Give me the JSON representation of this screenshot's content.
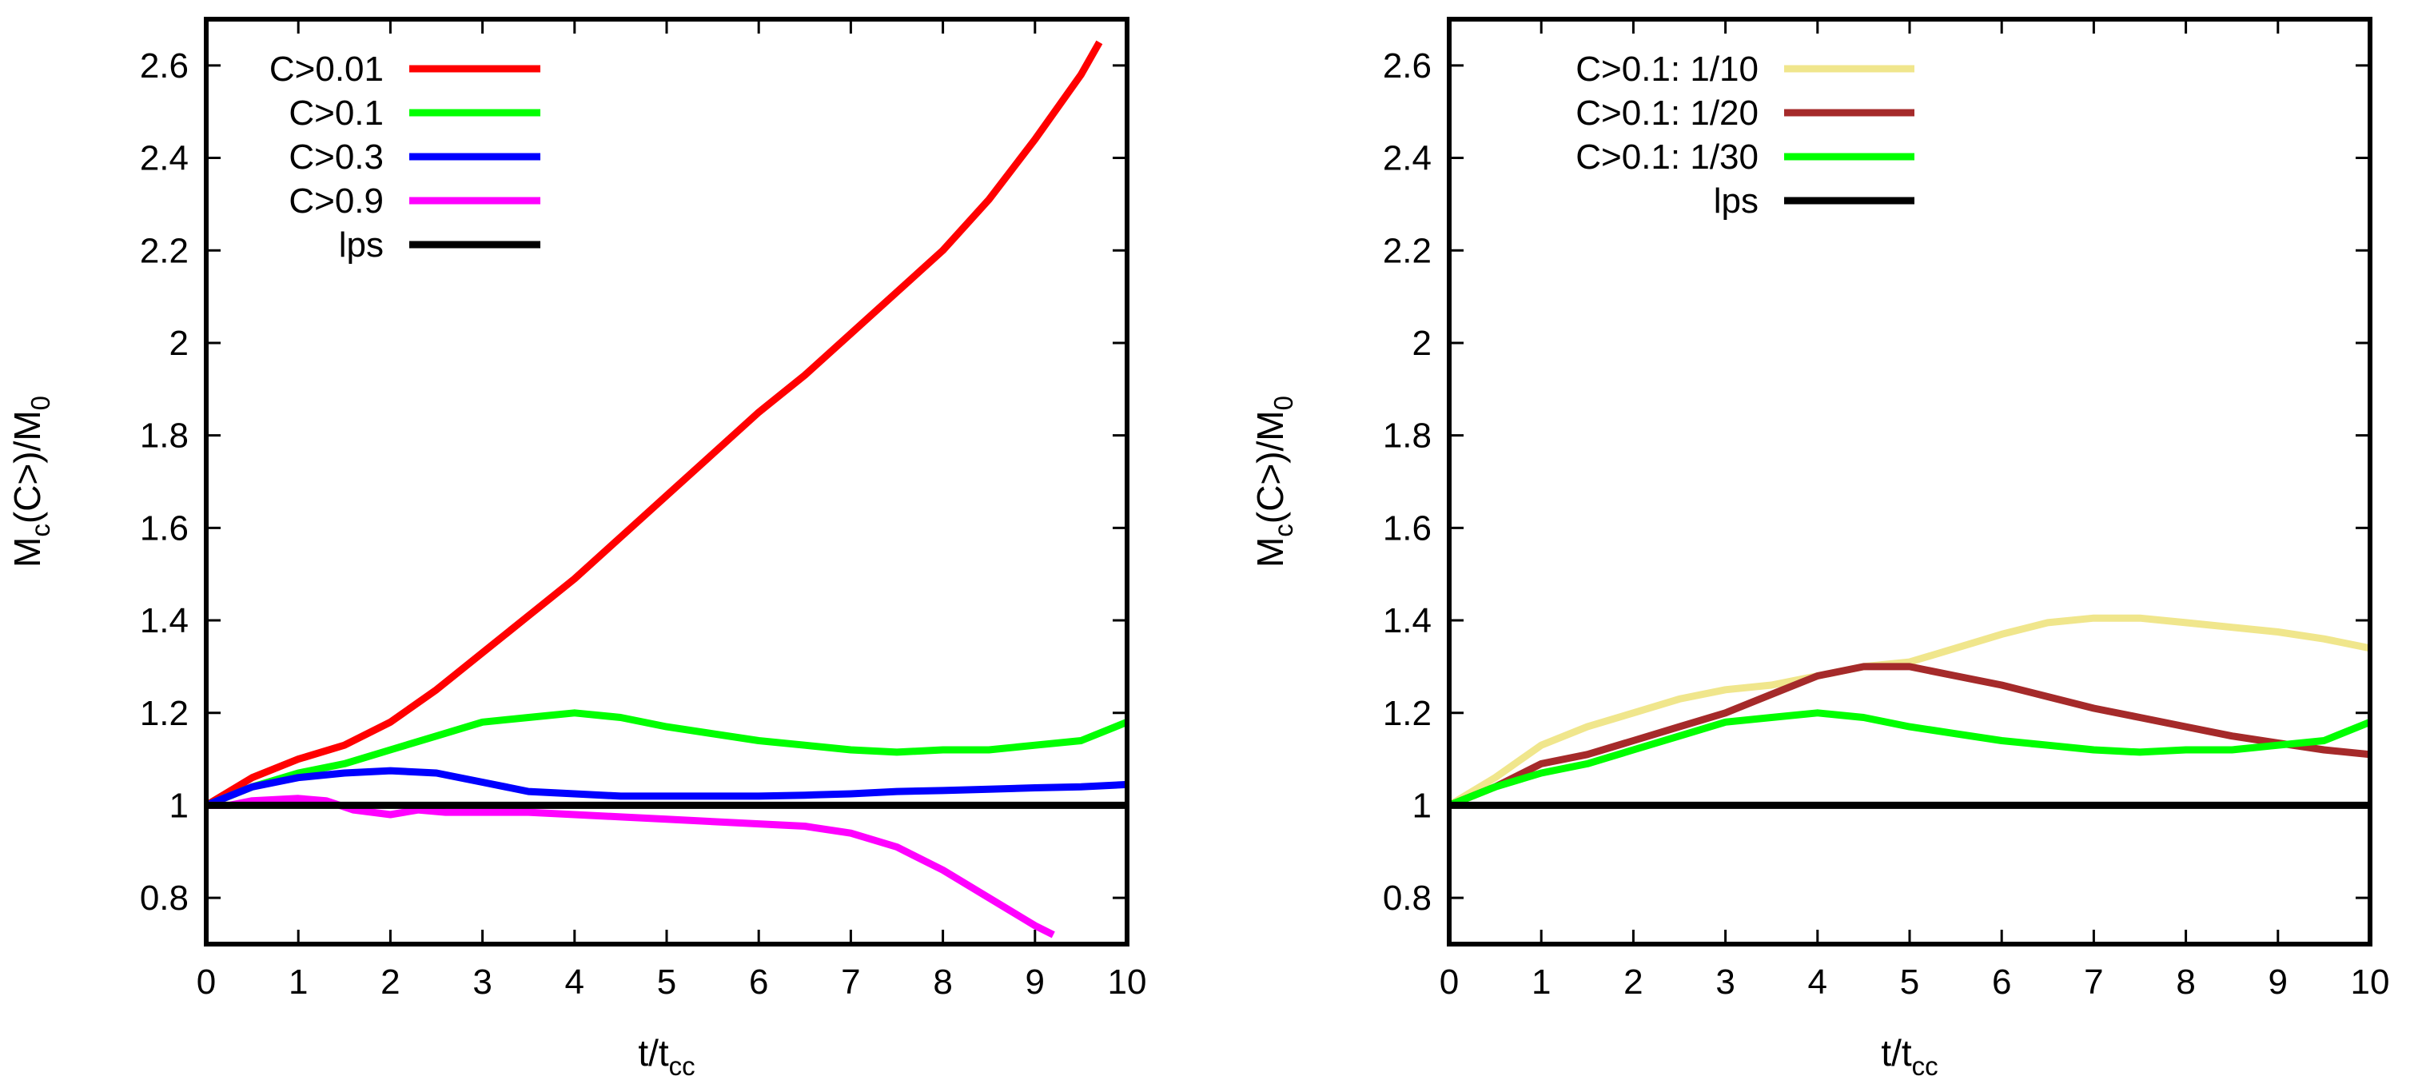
{
  "chart_data": [
    {
      "type": "line",
      "title": "",
      "xlabel": {
        "main": "t/t",
        "sub": "cc"
      },
      "ylabel": {
        "m": "M",
        "m_sub": "c",
        "mid": "(C>)/M",
        "zero_sub": "0"
      },
      "xlim": [
        0,
        10
      ],
      "ylim": [
        0.7,
        2.7
      ],
      "xticks": [
        0,
        1,
        2,
        3,
        4,
        5,
        6,
        7,
        8,
        9,
        10
      ],
      "xtick_labels": [
        "0",
        "1",
        "2",
        "3",
        "4",
        "5",
        "6",
        "7",
        "8",
        "9",
        "10"
      ],
      "yticks": [
        0.8,
        1.0,
        1.2,
        1.4,
        1.6,
        1.8,
        2.0,
        2.2,
        2.4,
        2.6
      ],
      "ytick_labels": [
        "0.8",
        "1",
        "1.2",
        "1.4",
        "1.6",
        "1.8",
        "2",
        "2.2",
        "2.4",
        "2.6"
      ],
      "legend_position": "top-left",
      "series": [
        {
          "name": "C>0.01",
          "color": "#ff0000",
          "x": [
            0,
            0.5,
            1,
            1.5,
            2,
            2.5,
            3,
            3.5,
            4,
            4.5,
            5,
            5.5,
            6,
            6.5,
            7,
            7.5,
            8,
            8.5,
            9,
            9.5,
            9.7
          ],
          "y": [
            1.0,
            1.06,
            1.1,
            1.13,
            1.18,
            1.25,
            1.33,
            1.41,
            1.49,
            1.58,
            1.67,
            1.76,
            1.85,
            1.93,
            2.02,
            2.11,
            2.2,
            2.31,
            2.44,
            2.58,
            2.65
          ]
        },
        {
          "name": "C>0.1",
          "color": "#00ff00",
          "x": [
            0,
            0.5,
            1,
            1.5,
            2,
            2.5,
            3,
            3.5,
            4,
            4.5,
            5,
            5.5,
            6,
            6.5,
            7,
            7.5,
            8,
            8.5,
            9,
            9.5,
            10
          ],
          "y": [
            1.0,
            1.04,
            1.07,
            1.09,
            1.12,
            1.15,
            1.18,
            1.19,
            1.2,
            1.19,
            1.17,
            1.155,
            1.14,
            1.13,
            1.12,
            1.115,
            1.12,
            1.12,
            1.13,
            1.14,
            1.18
          ]
        },
        {
          "name": "C>0.3",
          "color": "#0000ff",
          "x": [
            0,
            0.5,
            1,
            1.5,
            2,
            2.5,
            3,
            3.5,
            4,
            4.5,
            5,
            5.5,
            6,
            6.5,
            7,
            7.5,
            8,
            8.5,
            9,
            9.5,
            10
          ],
          "y": [
            1.0,
            1.04,
            1.06,
            1.07,
            1.075,
            1.07,
            1.05,
            1.03,
            1.025,
            1.02,
            1.02,
            1.02,
            1.02,
            1.022,
            1.025,
            1.03,
            1.032,
            1.035,
            1.038,
            1.04,
            1.045
          ]
        },
        {
          "name": "C>0.9",
          "color": "#ff00ff",
          "x": [
            0,
            0.25,
            0.5,
            1,
            1.3,
            1.6,
            2,
            2.3,
            2.6,
            3,
            3.5,
            4,
            4.5,
            5,
            5.5,
            6,
            6.5,
            7,
            7.5,
            8,
            8.5,
            9,
            9.2
          ],
          "y": [
            1.0,
            1.0,
            1.01,
            1.015,
            1.01,
            0.99,
            0.98,
            0.99,
            0.985,
            0.985,
            0.985,
            0.98,
            0.975,
            0.97,
            0.965,
            0.96,
            0.955,
            0.94,
            0.91,
            0.86,
            0.8,
            0.74,
            0.72
          ]
        },
        {
          "name": "lps",
          "color": "#000000",
          "x": [
            0,
            10
          ],
          "y": [
            1.0,
            1.0
          ]
        }
      ]
    },
    {
      "type": "line",
      "title": "",
      "xlabel": {
        "main": "t/t",
        "sub": "cc"
      },
      "ylabel": {
        "m": "M",
        "m_sub": "c",
        "mid": "(C>)/M",
        "zero_sub": "0"
      },
      "xlim": [
        0,
        10
      ],
      "ylim": [
        0.7,
        2.7
      ],
      "xticks": [
        0,
        1,
        2,
        3,
        4,
        5,
        6,
        7,
        8,
        9,
        10
      ],
      "xtick_labels": [
        "0",
        "1",
        "2",
        "3",
        "4",
        "5",
        "6",
        "7",
        "8",
        "9",
        "10"
      ],
      "yticks": [
        0.8,
        1.0,
        1.2,
        1.4,
        1.6,
        1.8,
        2.0,
        2.2,
        2.4,
        2.6
      ],
      "ytick_labels": [
        "0.8",
        "1",
        "1.2",
        "1.4",
        "1.6",
        "1.8",
        "2",
        "2.2",
        "2.4",
        "2.6"
      ],
      "legend_position": "top-center",
      "series": [
        {
          "name": "C>0.1: 1/10",
          "color": "#f0e68c",
          "x": [
            0,
            0.5,
            1,
            1.5,
            2,
            2.5,
            3,
            3.5,
            4,
            4.5,
            5,
            5.5,
            6,
            6.5,
            7,
            7.5,
            8,
            8.5,
            9,
            9.5,
            10
          ],
          "y": [
            1.0,
            1.06,
            1.13,
            1.17,
            1.2,
            1.23,
            1.25,
            1.26,
            1.28,
            1.3,
            1.31,
            1.34,
            1.37,
            1.395,
            1.405,
            1.405,
            1.395,
            1.385,
            1.375,
            1.36,
            1.34
          ]
        },
        {
          "name": "C>0.1: 1/20",
          "color": "#a52a2a",
          "x": [
            0,
            0.5,
            1,
            1.5,
            2,
            2.5,
            3,
            3.5,
            4,
            4.5,
            5,
            5.5,
            6,
            6.5,
            7,
            7.5,
            8,
            8.5,
            9,
            9.5,
            10
          ],
          "y": [
            1.0,
            1.04,
            1.09,
            1.11,
            1.14,
            1.17,
            1.2,
            1.24,
            1.28,
            1.3,
            1.3,
            1.28,
            1.26,
            1.235,
            1.21,
            1.19,
            1.17,
            1.15,
            1.135,
            1.12,
            1.11
          ]
        },
        {
          "name": "C>0.1: 1/30",
          "color": "#00ff00",
          "x": [
            0,
            0.5,
            1,
            1.5,
            2,
            2.5,
            3,
            3.5,
            4,
            4.5,
            5,
            5.5,
            6,
            6.5,
            7,
            7.5,
            8,
            8.5,
            9,
            9.5,
            10
          ],
          "y": [
            1.0,
            1.04,
            1.07,
            1.09,
            1.12,
            1.15,
            1.18,
            1.19,
            1.2,
            1.19,
            1.17,
            1.155,
            1.14,
            1.13,
            1.12,
            1.115,
            1.12,
            1.12,
            1.13,
            1.14,
            1.18
          ]
        },
        {
          "name": "lps",
          "color": "#000000",
          "x": [
            0,
            10
          ],
          "y": [
            1.0,
            1.0
          ]
        }
      ]
    }
  ]
}
